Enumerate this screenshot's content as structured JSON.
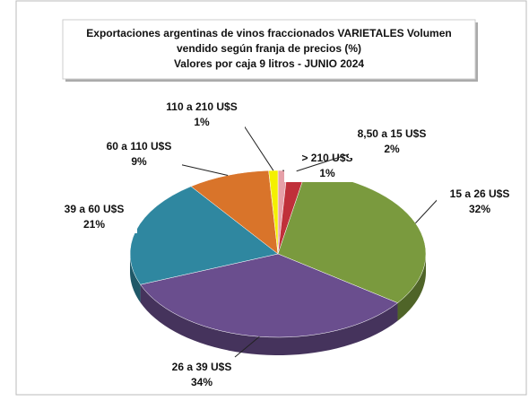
{
  "chart_data": {
    "type": "pie",
    "title": [
      "Exportaciones argentinas de vinos fraccionados VARIETALES Volumen",
      "vendido según franja de precios (%)",
      "Valores por caja  9 litros -  JUNIO 2024"
    ],
    "categories": [
      "> 210 U$S",
      "8,50 a 15 U$S",
      "15 a 26 U$S",
      "26 a 39 U$S",
      "39 a 60 U$S",
      "60 a 110 U$S",
      "110 a 210 U$S"
    ],
    "values": [
      1,
      2,
      32,
      34,
      21,
      9,
      1
    ],
    "value_labels": [
      "1%",
      "2%",
      "32%",
      "34%",
      "21%",
      "9%",
      "1%"
    ],
    "colors": [
      "#e6a0a8",
      "#c0303a",
      "#7a9a3e",
      "#6a4e8e",
      "#2f87a0",
      "#d9742a",
      "#f4f000"
    ]
  }
}
